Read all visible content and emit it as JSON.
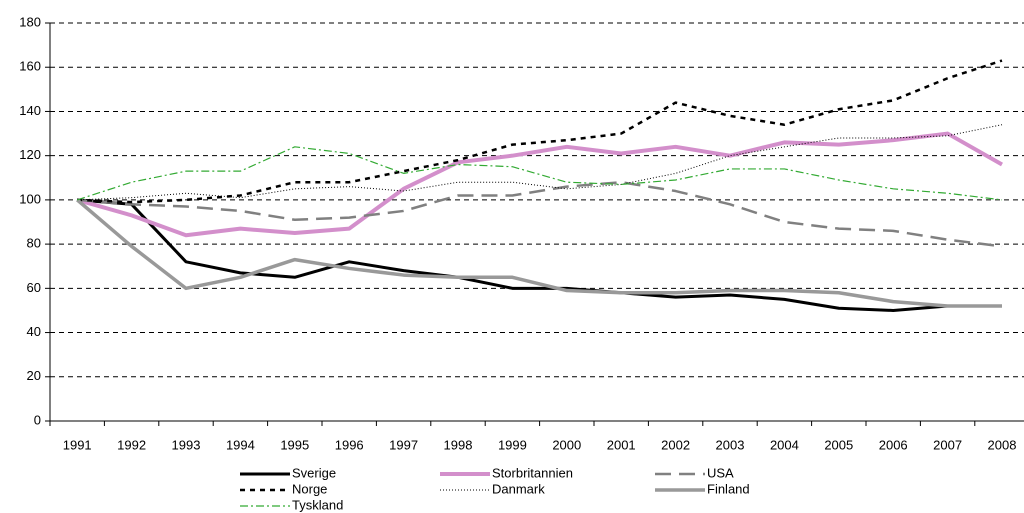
{
  "chart_data": {
    "type": "line",
    "categories": [
      "1991",
      "1992",
      "1993",
      "1994",
      "1995",
      "1996",
      "1997",
      "1998",
      "1999",
      "2000",
      "2001",
      "2002",
      "2003",
      "2004",
      "2005",
      "2006",
      "2007",
      "2008"
    ],
    "series": [
      {
        "name": "Sverige",
        "color": "#000000",
        "width": 3,
        "dash": "none",
        "values": [
          100,
          98,
          72,
          67,
          65,
          72,
          68,
          65,
          60,
          60,
          58,
          56,
          57,
          55,
          51,
          50,
          52,
          52
        ]
      },
      {
        "name": "Storbritannien",
        "color": "#d38fcb",
        "width": 4,
        "dash": "none",
        "values": [
          100,
          93,
          84,
          87,
          85,
          87,
          105,
          117,
          120,
          124,
          121,
          124,
          120,
          126,
          125,
          127,
          130,
          116
        ]
      },
      {
        "name": "USA",
        "color": "#808080",
        "width": 2.5,
        "dash": "16 8",
        "values": [
          100,
          98,
          97,
          95,
          91,
          92,
          95,
          102,
          102,
          106,
          108,
          104,
          98,
          90,
          87,
          86,
          82,
          79
        ]
      },
      {
        "name": "Norge",
        "color": "#000000",
        "width": 2.5,
        "dash": "5 5",
        "values": [
          100,
          99,
          100,
          102,
          108,
          108,
          113,
          118,
          125,
          127,
          130,
          144,
          138,
          134,
          141,
          145,
          155,
          163
        ]
      },
      {
        "name": "Danmark",
        "color": "#000000",
        "width": 1,
        "dash": "1 2",
        "values": [
          100,
          101,
          103,
          101,
          105,
          106,
          104,
          108,
          108,
          105,
          107,
          112,
          120,
          124,
          128,
          128,
          129,
          134
        ]
      },
      {
        "name": "Finland",
        "color": "#999999",
        "width": 3.5,
        "dash": "none",
        "values": [
          100,
          79,
          60,
          65,
          73,
          69,
          66,
          65,
          65,
          59,
          58,
          58,
          59,
          59,
          58,
          54,
          52,
          52
        ]
      },
      {
        "name": "Tyskland",
        "color": "#33aa33",
        "width": 1.2,
        "dash": "8 3 2 3",
        "values": [
          100,
          108,
          113,
          113,
          124,
          121,
          112,
          116,
          115,
          108,
          107,
          109,
          114,
          114,
          109,
          105,
          103,
          100
        ]
      }
    ],
    "ylim": [
      0,
      180
    ],
    "yticks": [
      0,
      20,
      40,
      60,
      80,
      100,
      120,
      140,
      160,
      180
    ],
    "grid": true
  }
}
